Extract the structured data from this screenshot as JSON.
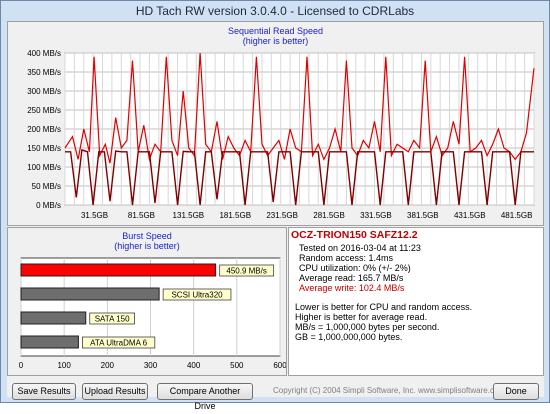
{
  "window": {
    "title": "HD Tach RW version 3.0.4.0 - Licensed to CDRLabs"
  },
  "read_chart": {
    "title": "Sequential Read Speed",
    "subtitle": "(higher is better)"
  },
  "burst_chart": {
    "title": "Burst Speed",
    "subtitle": "(higher is better)"
  },
  "info": {
    "drive": "OCZ-TRION150 SAFZ12.2",
    "tested": "Tested on 2016-03-04 at 11:23",
    "random_access": "Random access: 1.4ms",
    "cpu": "CPU utilization: 0% (+/- 2%)",
    "avg_read": "Average read: 165.7 MB/s",
    "avg_write": "Average write: 102.4 MB/s",
    "note1": "Lower is better for CPU and random access.",
    "note2": "Higher is better for average read.",
    "note3": "MB/s = 1,000,000 bytes per second.",
    "note4": "GB = 1,000,000,000 bytes."
  },
  "buttons": {
    "save": "Save Results",
    "upload": "Upload Results",
    "compare": "Compare Another Drive",
    "done": "Done"
  },
  "copyright": "Copyright (C) 2004 Simpli Software, Inc. www.simplisoftware.com",
  "colors": {
    "read": "#e00000",
    "write": "#800000",
    "burst_bar": "#ff0000",
    "other_bar": "#6e6e6e",
    "label_bg": "#ffffcc"
  },
  "chart_data": [
    {
      "type": "line",
      "title": "Sequential Read Speed",
      "subtitle": "(higher is better)",
      "y_ticks": [
        "0 MB/s",
        "50 MB/s",
        "100 MB/s",
        "150 MB/s",
        "200 MB/s",
        "250 MB/s",
        "300 MB/s",
        "350 MB/s",
        "400 MB/s"
      ],
      "x_ticks": [
        "31.5GB",
        "81.5GB",
        "131.5GB",
        "181.5GB",
        "231.5GB",
        "281.5GB",
        "331.5GB",
        "381.5GB",
        "431.5GB",
        "481.5GB"
      ],
      "ylim": [
        0,
        400
      ],
      "xlim": [
        0,
        500
      ],
      "grid": true,
      "series": [
        {
          "x": [
            0,
            8,
            14,
            20,
            26,
            31,
            37,
            43,
            48,
            54,
            60,
            66,
            72,
            78,
            84,
            90,
            96,
            102,
            108,
            114,
            120,
            126,
            132,
            138,
            144,
            150,
            156,
            162,
            168,
            174,
            180,
            186,
            192,
            198,
            204,
            210,
            216,
            222,
            228,
            234,
            240,
            246,
            252,
            258,
            264,
            270,
            276,
            282,
            288,
            294,
            300,
            306,
            312,
            318,
            324,
            330,
            336,
            342,
            348,
            354,
            360,
            366,
            372,
            378,
            384,
            390,
            396,
            402,
            408,
            414,
            420,
            426,
            432,
            438,
            444,
            450,
            456,
            462,
            468,
            474,
            480,
            486,
            492,
            500
          ],
          "y": [
            150,
            180,
            120,
            200,
            140,
            390,
            130,
            160,
            110,
            230,
            150,
            170,
            380,
            140,
            210,
            120,
            160,
            140,
            390,
            170,
            130,
            300,
            150,
            130,
            400,
            160,
            140,
            220,
            120,
            180,
            150,
            130,
            170,
            140,
            390,
            160,
            130,
            150,
            170,
            120,
            200,
            150,
            140,
            390,
            130,
            160,
            120,
            150,
            200,
            140,
            380,
            150,
            130,
            170,
            150,
            220,
            140,
            390,
            130,
            160,
            150,
            140,
            170,
            150,
            380,
            140,
            180,
            130,
            150,
            220,
            160,
            390,
            140,
            150,
            170,
            130,
            160,
            200,
            150,
            140,
            120,
            140,
            190,
            360
          ]
        },
        {
          "x": [
            0,
            6,
            12,
            18,
            24,
            30,
            36,
            42,
            48,
            54,
            60,
            66,
            72,
            78,
            84,
            90,
            96,
            102,
            108,
            114,
            120,
            126,
            132,
            138,
            144,
            150,
            156,
            162,
            168,
            174,
            180,
            186,
            192,
            198,
            204,
            210,
            216,
            222,
            228,
            234,
            240,
            246,
            252,
            258,
            264,
            270,
            276,
            282,
            288,
            294,
            300,
            306,
            312,
            318,
            324,
            330,
            336,
            342,
            348,
            354,
            360,
            366,
            372,
            378,
            384,
            390,
            396,
            402,
            408,
            414,
            420,
            426,
            432,
            438,
            444,
            450,
            456,
            462,
            468,
            474,
            480,
            486,
            492,
            500
          ],
          "y": [
            140,
            140,
            20,
            145,
            140,
            0,
            140,
            140,
            10,
            142,
            140,
            140,
            0,
            140,
            140,
            140,
            5,
            140,
            140,
            140,
            0,
            141,
            140,
            140,
            0,
            140,
            140,
            15,
            140,
            140,
            140,
            140,
            0,
            140,
            140,
            140,
            140,
            8,
            140,
            140,
            140,
            0,
            140,
            140,
            140,
            140,
            0,
            140,
            140,
            140,
            140,
            0,
            140,
            140,
            140,
            140,
            0,
            140,
            140,
            140,
            140,
            0,
            140,
            140,
            140,
            140,
            0,
            140,
            140,
            140,
            0,
            140,
            140,
            140,
            140,
            0,
            140,
            140,
            140,
            140,
            0,
            140,
            140,
            140
          ]
        }
      ]
    },
    {
      "type": "bar",
      "title": "Burst Speed",
      "subtitle": "(higher is better)",
      "categories": [
        "450.9 MB/s",
        "SCSI Ultra320",
        "SATA 150",
        "ATA UltraDMA 6"
      ],
      "values": [
        450.9,
        320,
        150,
        133
      ],
      "x_ticks": [
        "0",
        "100",
        "200",
        "300",
        "400",
        "500",
        "600"
      ],
      "xlim": [
        0,
        600
      ]
    }
  ]
}
